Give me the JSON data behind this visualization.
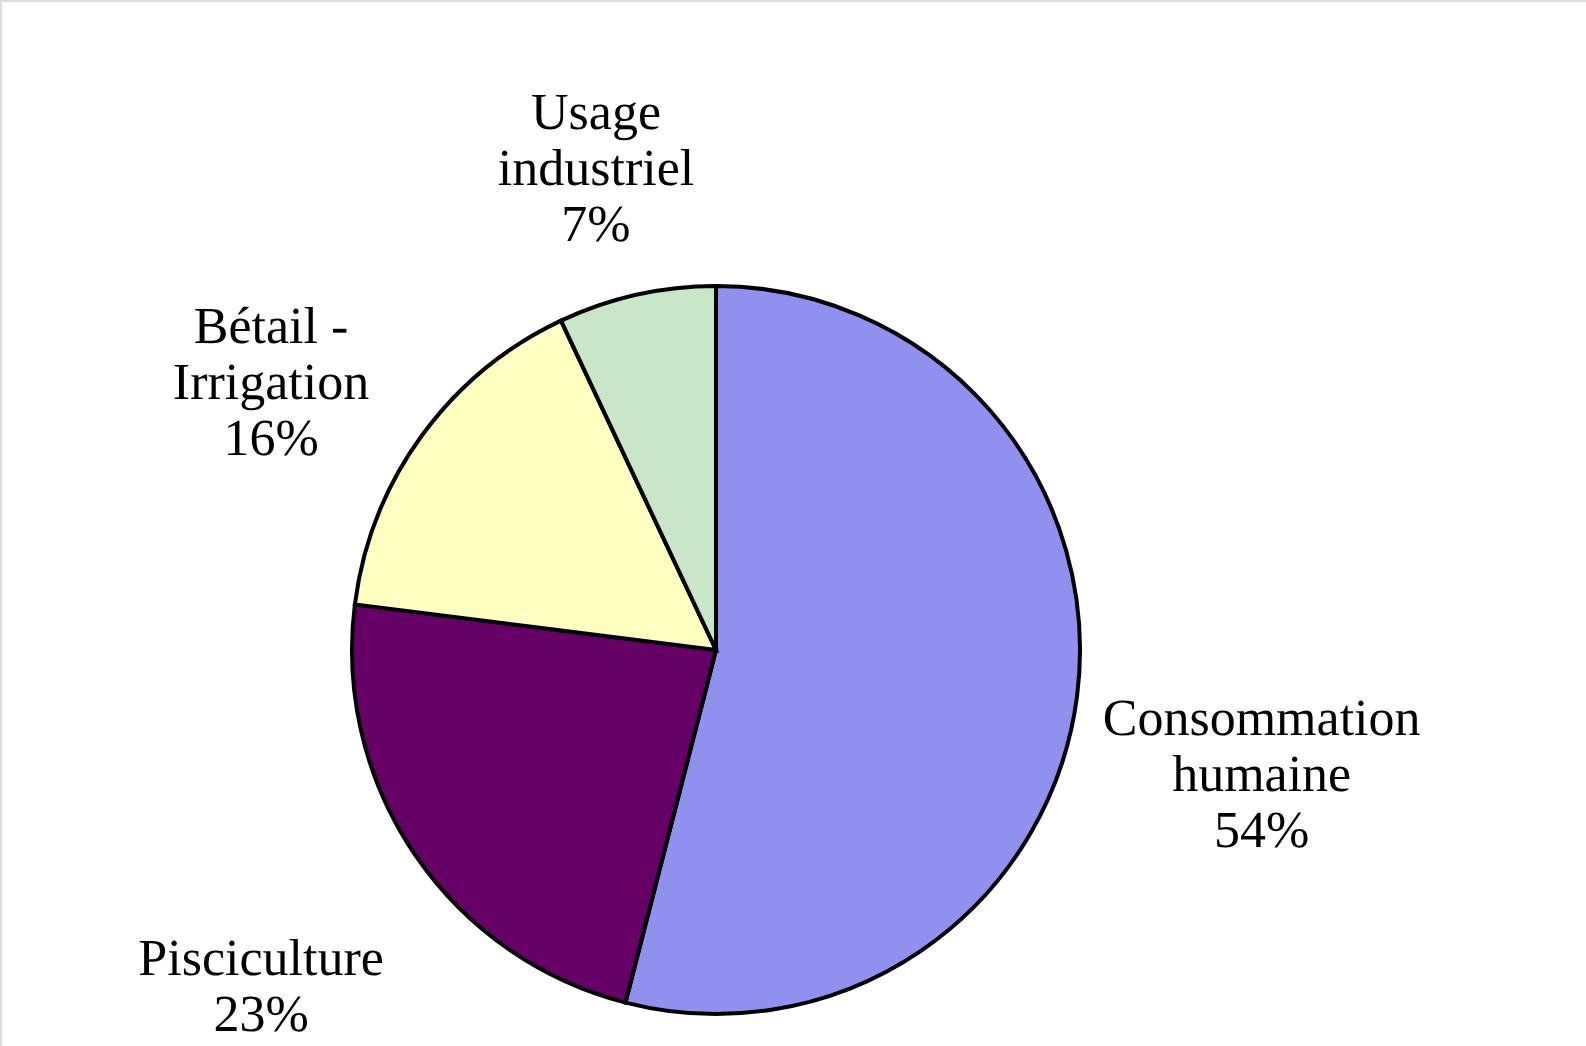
{
  "chart_data": {
    "type": "pie",
    "categories": [
      "Consommation\nhumaine",
      "Pisciculture",
      "Bétail -\nIrrigation",
      "Usage\nindustriel"
    ],
    "values": [
      54,
      23,
      16,
      7
    ],
    "value_labels": [
      "54%",
      "23%",
      "16%",
      "7%"
    ],
    "colors": [
      "#9090f0",
      "#660066",
      "#ffffc0",
      "#c8e6c8"
    ]
  }
}
